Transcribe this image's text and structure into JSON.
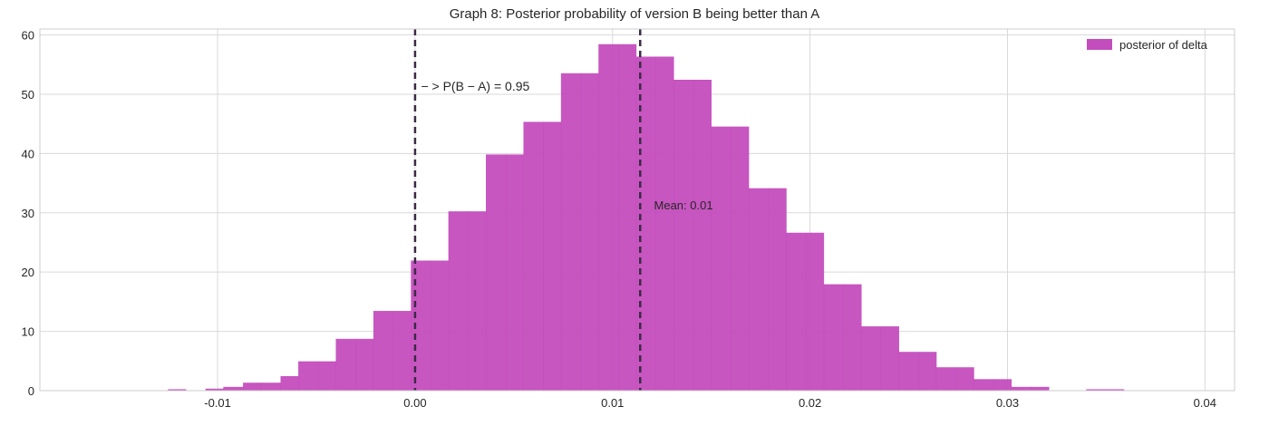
{
  "chart_data": {
    "type": "bar",
    "title": "Graph 8: Posterior probability of version B being better than A",
    "xlabel": "",
    "ylabel": "",
    "xlim": [
      -0.019,
      0.0415
    ],
    "ylim": [
      0,
      61
    ],
    "xticks": [
      -0.01,
      0.0,
      0.01,
      0.02,
      0.03,
      0.04
    ],
    "xtick_labels": [
      "-0.01",
      "0.00",
      "0.01",
      "0.02",
      "0.03",
      "0.04"
    ],
    "yticks": [
      0,
      10,
      20,
      30,
      40,
      50,
      60
    ],
    "ytick_labels": [
      "0",
      "10",
      "20",
      "30",
      "40",
      "50",
      "60"
    ],
    "grid": true,
    "legend_position": "top-right",
    "series": [
      {
        "name": "posterior of delta",
        "color": "#c44dbd",
        "bins": [
          {
            "x0": -0.0125,
            "x1": -0.0116,
            "value": 0.2
          },
          {
            "x0": -0.0116,
            "x1": -0.0106,
            "value": 0
          },
          {
            "x0": -0.0106,
            "x1": -0.0097,
            "value": 0.3
          },
          {
            "x0": -0.0097,
            "x1": -0.0087,
            "value": 0.6
          },
          {
            "x0": -0.0087,
            "x1": -0.0078,
            "value": 1.3
          },
          {
            "x0": -0.0078,
            "x1": -0.0068,
            "value": 1.3
          },
          {
            "x0": -0.0068,
            "x1": -0.0059,
            "value": 2.4
          },
          {
            "x0": -0.0059,
            "x1": -0.0049,
            "value": 4.9
          },
          {
            "x0": -0.0049,
            "x1": -0.004,
            "value": 4.9
          },
          {
            "x0": -0.004,
            "x1": -0.003,
            "value": 8.7
          },
          {
            "x0": -0.003,
            "x1": -0.0021,
            "value": 8.7
          },
          {
            "x0": -0.0021,
            "x1": -0.0011,
            "value": 13.4
          },
          {
            "x0": -0.0011,
            "x1": -0.0002,
            "value": 13.4
          },
          {
            "x0": -0.0002,
            "x1": 0.0008,
            "value": 21.9
          },
          {
            "x0": 0.0008,
            "x1": 0.0017,
            "value": 21.9
          },
          {
            "x0": 0.0017,
            "x1": 0.0027,
            "value": 30.2
          },
          {
            "x0": 0.0027,
            "x1": 0.0036,
            "value": 30.2
          },
          {
            "x0": 0.0036,
            "x1": 0.0046,
            "value": 39.8
          },
          {
            "x0": 0.0046,
            "x1": 0.0055,
            "value": 39.8
          },
          {
            "x0": 0.0055,
            "x1": 0.0065,
            "value": 45.3
          },
          {
            "x0": 0.0065,
            "x1": 0.0074,
            "value": 45.3
          },
          {
            "x0": 0.0074,
            "x1": 0.0084,
            "value": 53.5
          },
          {
            "x0": 0.0084,
            "x1": 0.0093,
            "value": 53.5
          },
          {
            "x0": 0.0093,
            "x1": 0.0103,
            "value": 58.4
          },
          {
            "x0": 0.0103,
            "x1": 0.0112,
            "value": 58.4
          },
          {
            "x0": 0.0112,
            "x1": 0.0122,
            "value": 56.3
          },
          {
            "x0": 0.0122,
            "x1": 0.0131,
            "value": 56.3
          },
          {
            "x0": 0.0131,
            "x1": 0.0141,
            "value": 52.4
          },
          {
            "x0": 0.0141,
            "x1": 0.015,
            "value": 52.4
          },
          {
            "x0": 0.015,
            "x1": 0.016,
            "value": 44.5
          },
          {
            "x0": 0.016,
            "x1": 0.0169,
            "value": 44.5
          },
          {
            "x0": 0.0169,
            "x1": 0.0179,
            "value": 34.1
          },
          {
            "x0": 0.0179,
            "x1": 0.0188,
            "value": 34.1
          },
          {
            "x0": 0.0188,
            "x1": 0.0198,
            "value": 26.6
          },
          {
            "x0": 0.0198,
            "x1": 0.0207,
            "value": 26.6
          },
          {
            "x0": 0.0207,
            "x1": 0.0217,
            "value": 17.9
          },
          {
            "x0": 0.0217,
            "x1": 0.0226,
            "value": 17.9
          },
          {
            "x0": 0.0226,
            "x1": 0.0236,
            "value": 10.8
          },
          {
            "x0": 0.0236,
            "x1": 0.0245,
            "value": 10.8
          },
          {
            "x0": 0.0245,
            "x1": 0.0255,
            "value": 6.5
          },
          {
            "x0": 0.0255,
            "x1": 0.0264,
            "value": 6.5
          },
          {
            "x0": 0.0264,
            "x1": 0.0274,
            "value": 3.9
          },
          {
            "x0": 0.0274,
            "x1": 0.0283,
            "value": 3.9
          },
          {
            "x0": 0.0283,
            "x1": 0.0293,
            "value": 1.9
          },
          {
            "x0": 0.0293,
            "x1": 0.0302,
            "value": 1.9
          },
          {
            "x0": 0.0302,
            "x1": 0.0312,
            "value": 0.6
          },
          {
            "x0": 0.0312,
            "x1": 0.0321,
            "value": 0.6
          },
          {
            "x0": 0.0321,
            "x1": 0.034,
            "value": 0
          },
          {
            "x0": 0.034,
            "x1": 0.0359,
            "value": 0.2
          }
        ]
      }
    ],
    "vlines": [
      {
        "name": "zero-line",
        "x": 0.0,
        "style": "dashed",
        "color": "#3b2a45"
      },
      {
        "name": "mean-line",
        "x": 0.0114,
        "style": "dashed",
        "color": "#3b2a45"
      }
    ],
    "annotations": [
      {
        "name": "probability-annotation",
        "text": "− >  P(B − A) = 0.95",
        "x": 0.0003,
        "y": 50.6
      },
      {
        "name": "mean-annotation",
        "text": "Mean: 0.01",
        "x": 0.0121,
        "y": 30.6
      }
    ]
  }
}
